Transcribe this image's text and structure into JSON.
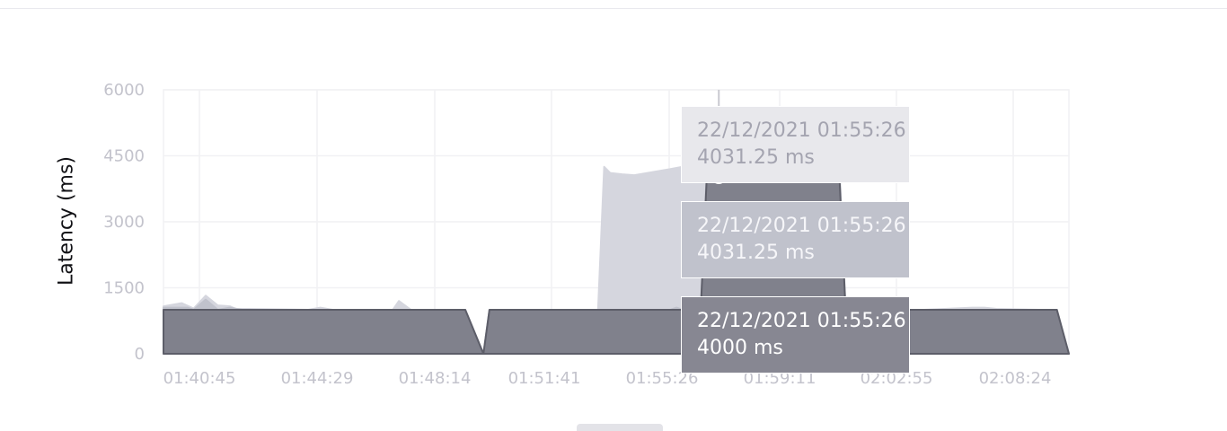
{
  "chart_data": {
    "type": "area",
    "ylabel": "Latency (ms)",
    "xlabel": "",
    "ylim": [
      0,
      6000
    ],
    "y_ticks": [
      "6000",
      "4500",
      "3000",
      "1500",
      "0"
    ],
    "x_tick_labels": [
      "01:40:45",
      "01:44:29",
      "01:48:14",
      "01:51:41",
      "01:55:26",
      "01:59:11",
      "02:02:55",
      "02:08:24"
    ],
    "series": [
      {
        "name": "series-light",
        "color": "#d5d6de",
        "points": [
          [
            0,
            1080
          ],
          [
            3,
            1150
          ],
          [
            5,
            1030
          ],
          [
            7,
            1320
          ],
          [
            9,
            1100
          ],
          [
            11,
            1080
          ],
          [
            12,
            1020
          ],
          [
            14,
            1020
          ],
          [
            24,
            1000
          ],
          [
            26,
            1050
          ],
          [
            28,
            1000
          ],
          [
            36,
            1000
          ],
          [
            38,
            1000
          ],
          [
            39,
            1200
          ],
          [
            41,
            1000
          ],
          [
            50,
            1000
          ],
          [
            53,
            0
          ],
          [
            54,
            1000
          ],
          [
            69,
            1000
          ],
          [
            72,
            1000
          ],
          [
            73,
            4250
          ],
          [
            74,
            4110
          ],
          [
            76,
            4080
          ],
          [
            78,
            4060
          ],
          [
            84,
            4200
          ],
          [
            88,
            4300
          ],
          [
            99,
            4300
          ],
          [
            112,
            4300
          ],
          [
            113,
            1000
          ],
          [
            120,
            1000
          ],
          [
            126,
            1000
          ],
          [
            134,
            1050
          ],
          [
            136,
            1050
          ],
          [
            138,
            1020
          ],
          [
            145,
            1000
          ],
          [
            148,
            1000
          ],
          [
            150,
            0
          ]
        ]
      },
      {
        "name": "series-mid",
        "color": "#c0c2cc",
        "points": [
          [
            0,
            1050
          ],
          [
            4,
            1050
          ],
          [
            5,
            1000
          ],
          [
            7,
            1230
          ],
          [
            9,
            1000
          ],
          [
            11,
            1050
          ],
          [
            13,
            1000
          ],
          [
            50,
            1000
          ],
          [
            53,
            0
          ],
          [
            54,
            1000
          ],
          [
            84,
            1000
          ],
          [
            85,
            1050
          ],
          [
            86,
            1000
          ],
          [
            89,
            1000
          ],
          [
            90,
            4150
          ],
          [
            92,
            4100
          ],
          [
            93,
            4100
          ],
          [
            94,
            4000
          ],
          [
            96,
            4000
          ],
          [
            98,
            4000
          ],
          [
            110,
            4000
          ],
          [
            113,
            1000
          ],
          [
            145,
            1000
          ],
          [
            148,
            1000
          ],
          [
            150,
            0
          ]
        ]
      },
      {
        "name": "series-dark",
        "color": "#80818c",
        "points": [
          [
            0,
            1000
          ],
          [
            50,
            1000
          ],
          [
            53,
            0
          ],
          [
            54,
            1000
          ],
          [
            83,
            1000
          ],
          [
            84,
            1000
          ],
          [
            85,
            1000
          ],
          [
            86,
            1000
          ],
          [
            89,
            1000
          ],
          [
            90,
            4000
          ],
          [
            93,
            4000
          ],
          [
            96,
            4000
          ],
          [
            112,
            4000
          ],
          [
            113,
            1000
          ],
          [
            148,
            1000
          ],
          [
            150,
            0
          ]
        ]
      }
    ],
    "highlight": {
      "x": 92,
      "y": 4031.25
    },
    "tooltips": [
      {
        "date": "22/12/2021 01:55:26",
        "value": "4031.25 ms"
      },
      {
        "date": "22/12/2021 01:55:26",
        "value": "4031.25 ms"
      },
      {
        "date": "22/12/2021 01:55:26",
        "value": "4000 ms"
      }
    ]
  }
}
